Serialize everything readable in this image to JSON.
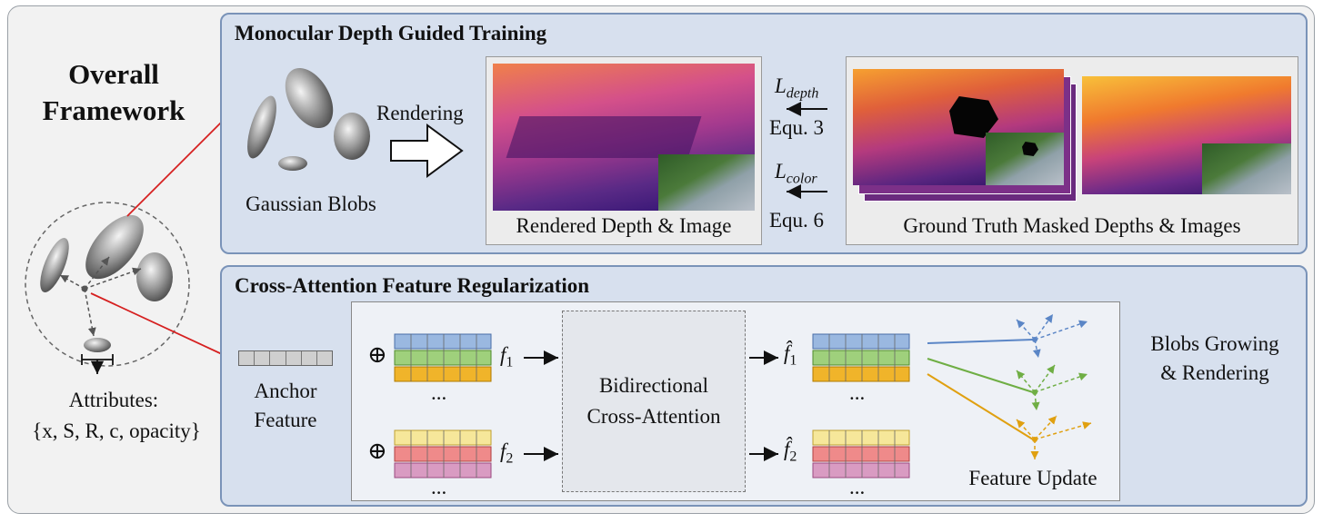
{
  "left": {
    "title": "Overall Framework",
    "attributes_label": "Attributes:",
    "attributes_set": "{x, S, R, c, opacity}"
  },
  "top_panel": {
    "title": "Monocular Depth Guided Training",
    "blobs_label": "Gaussian Blobs",
    "rendering_label": "Rendering",
    "rendered_label": "Rendered Depth & Image",
    "ldepth": "L",
    "ldepth_sub": "depth",
    "equ3": "Equ. 3",
    "lcolor": "L",
    "lcolor_sub": "color",
    "equ6": "Equ. 6",
    "gt_label": "Ground Truth Masked Depths & Images"
  },
  "bottom_panel": {
    "title": "Cross-Attention Feature Regularization",
    "anchor_label_1": "Anchor",
    "anchor_label_2": "Feature",
    "oplus": "⊕",
    "f1": "f",
    "f1_sub": "1",
    "f2": "f",
    "f2_sub": "2",
    "f1hat": "f̂",
    "f2hat": "f̂",
    "ellipsis": "...",
    "bca_1": "Bidirectional",
    "bca_2": "Cross-Attention",
    "feature_update": "Feature Update",
    "blobs_growing_1": "Blobs Growing",
    "blobs_growing_2": "& Rendering"
  },
  "colors": {
    "panel_fill": "#d7e0ee",
    "panel_border": "#7a93b8",
    "blue_row": "#9ab8e0",
    "green_row": "#9fd07c",
    "orange_row": "#f0b42a",
    "yellow_row": "#f6e79a",
    "red_row": "#ef8a8a",
    "pink_row": "#d99bc2",
    "connector_red": "#d62020"
  }
}
